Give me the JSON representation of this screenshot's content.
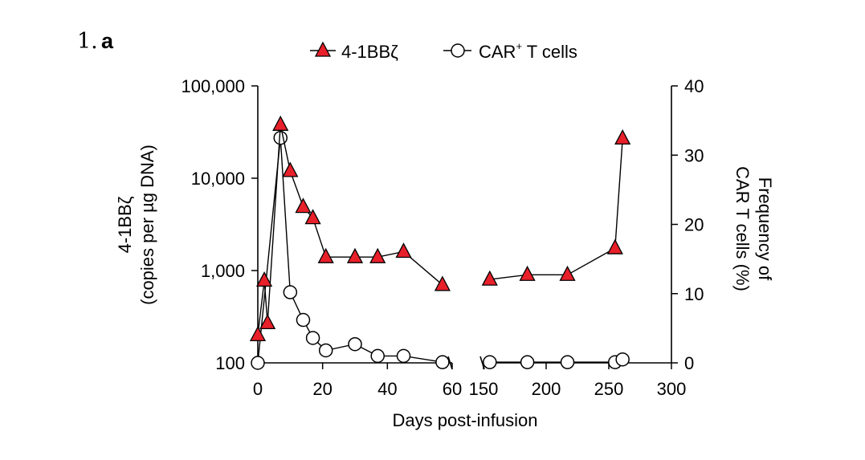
{
  "figure": {
    "panel_number": "1.",
    "panel_letter": "a"
  },
  "chart_data": {
    "type": "line",
    "xlabel": "Days post-infusion",
    "ylabel_left_line1": "4-1BBζ",
    "ylabel_left_line2": "(copies per µg DNA)",
    "ylabel_right_line1": "Frequency of",
    "ylabel_right_line2": "CAR T cells (%)",
    "x_segments": [
      {
        "range": [
          0,
          60
        ],
        "ticks": [
          0,
          20,
          40,
          60
        ]
      },
      {
        "range": [
          150,
          300
        ],
        "ticks": [
          150,
          200,
          250,
          300
        ]
      }
    ],
    "y_left": {
      "scale": "log",
      "range": [
        100,
        100000
      ],
      "ticks": [
        100,
        1000,
        10000,
        100000
      ],
      "tick_labels": [
        "100",
        "1,000",
        "10,000",
        "100,000"
      ]
    },
    "y_right": {
      "scale": "linear",
      "range": [
        0,
        40
      ],
      "ticks": [
        0,
        10,
        20,
        30,
        40
      ],
      "tick_labels": [
        "0",
        "10",
        "20",
        "30",
        "40"
      ]
    },
    "legend_position": "top-center",
    "grid": false,
    "series": [
      {
        "name": "4-1BBζ",
        "label_main": "CAR",
        "axis": "left",
        "marker": "triangle",
        "color": "#e8202a",
        "points": [
          [
            0,
            200
          ],
          [
            2,
            780
          ],
          [
            3,
            270
          ],
          [
            7,
            38000
          ],
          [
            10,
            12000
          ],
          [
            14,
            4900
          ],
          [
            17,
            3700
          ],
          [
            21,
            1400
          ],
          [
            30,
            1400
          ],
          [
            37,
            1400
          ],
          [
            45,
            1600
          ],
          [
            57,
            700
          ],
          [
            155,
            800
          ],
          [
            185,
            900
          ],
          [
            217,
            900
          ],
          [
            255,
            1750
          ],
          [
            261,
            27000
          ]
        ]
      },
      {
        "name": "CAR⁺ T cells",
        "label_main": "CAR",
        "label_sup": "+",
        "label_rest": " T cells",
        "axis": "right",
        "marker": "circle",
        "color": "#ffffff",
        "points": [
          [
            0,
            0
          ],
          [
            7,
            32.5
          ],
          [
            10,
            10.2
          ],
          [
            14,
            6.2
          ],
          [
            17,
            3.6
          ],
          [
            21,
            1.8
          ],
          [
            30,
            2.7
          ],
          [
            37,
            1.0
          ],
          [
            45,
            1.0
          ],
          [
            57,
            0.1
          ],
          [
            155,
            0.1
          ],
          [
            185,
            0.1
          ],
          [
            217,
            0.1
          ],
          [
            255,
            0.1
          ],
          [
            261,
            0.5
          ]
        ]
      }
    ]
  }
}
